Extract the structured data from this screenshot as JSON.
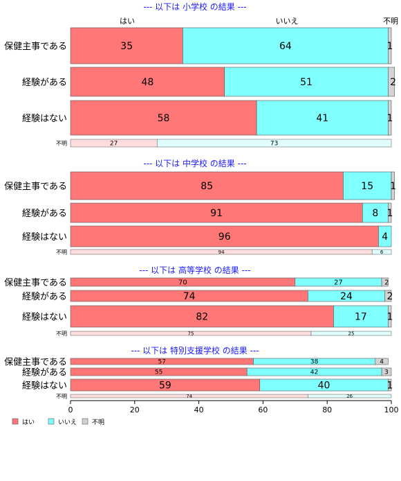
{
  "chart_data": {
    "type": "bar",
    "orientation": "horizontal",
    "stacked": "percent",
    "xlim": [
      0,
      100
    ],
    "xticks": [
      0,
      20,
      40,
      60,
      80,
      100
    ],
    "header_labels": [
      "はい",
      "いいえ",
      "不明"
    ],
    "legend": [
      "はい",
      "いいえ",
      "不明"
    ],
    "legend_position": "bottom-left",
    "colors": {
      "yes": "#ff7777",
      "no": "#80ffff",
      "unknown": "#d3d3d3"
    },
    "panels": [
      {
        "title": "--- 以下は 小学校 の結果 ---",
        "rows": [
          {
            "label": "保健主事である",
            "values": [
              35,
              64,
              1
            ]
          },
          {
            "label": "経験がある",
            "values": [
              48,
              51,
              2
            ]
          },
          {
            "label": "経験はない",
            "values": [
              58,
              41,
              1
            ]
          }
        ],
        "unknown_row": {
          "label": "不明",
          "values": [
            27,
            73,
            0
          ]
        }
      },
      {
        "title": "--- 以下は 中学校 の結果 ---",
        "rows": [
          {
            "label": "保健主事である",
            "values": [
              85,
              15,
              1
            ]
          },
          {
            "label": "経験がある",
            "values": [
              91,
              8,
              1
            ]
          },
          {
            "label": "経験はない",
            "values": [
              96,
              4,
              0
            ]
          }
        ],
        "unknown_row": {
          "label": "不明",
          "values": [
            94,
            6,
            0
          ]
        }
      },
      {
        "title": "--- 以下は 高等学校 の結果 ---",
        "rows": [
          {
            "label": "保健主事である",
            "values": [
              70,
              27,
              2
            ]
          },
          {
            "label": "経験がある",
            "values": [
              74,
              24,
              2
            ]
          },
          {
            "label": "経験はない",
            "values": [
              82,
              17,
              1
            ]
          }
        ],
        "unknown_row": {
          "label": "不明",
          "values": [
            75,
            25,
            0
          ]
        }
      },
      {
        "title": "--- 以下は 特別支援学校 の結果 ---",
        "rows": [
          {
            "label": "保健主事である",
            "values": [
              57,
              38,
              4
            ]
          },
          {
            "label": "経験がある",
            "values": [
              55,
              42,
              3
            ]
          },
          {
            "label": "経験はない",
            "values": [
              59,
              40,
              1
            ]
          }
        ],
        "unknown_row": {
          "label": "不明",
          "values": [
            74,
            26,
            0
          ]
        }
      }
    ]
  }
}
